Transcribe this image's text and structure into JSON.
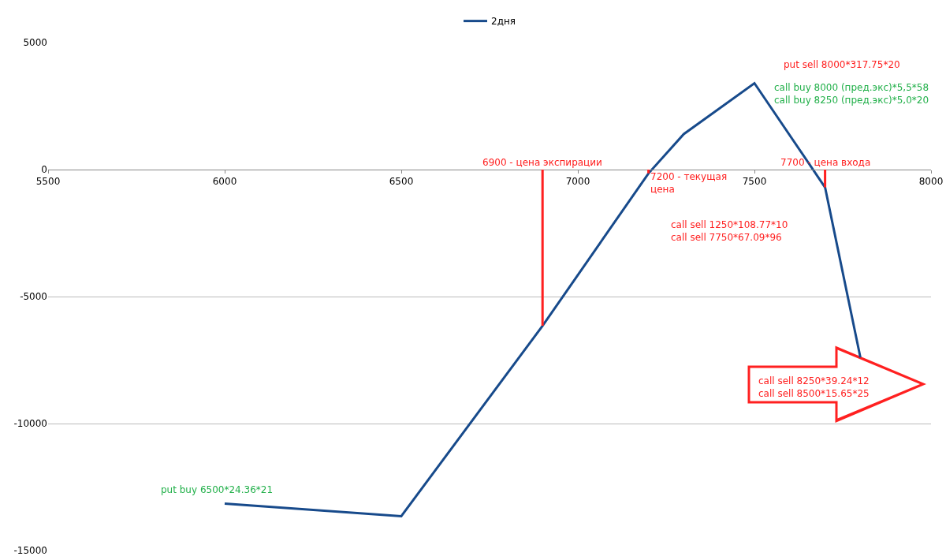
{
  "chart_data": {
    "type": "line",
    "legend": "top",
    "grid": "y",
    "marker": "none",
    "line_style": "solid",
    "x": [
      6000,
      6500,
      6900,
      7200,
      7300,
      7500,
      7700,
      7800
    ],
    "series": [
      {
        "name": "2дня",
        "color": "#174a8b",
        "values": [
          -13150,
          -13650,
          -6150,
          -150,
          1400,
          3400,
          -700,
          -7400
        ]
      }
    ],
    "xlim": [
      5500,
      8000
    ],
    "xticks": [
      5500,
      6000,
      6500,
      7000,
      7500,
      8000
    ],
    "ylim": [
      -15000,
      5000
    ],
    "yticks": [
      -15000,
      -10000,
      -5000,
      0,
      5000
    ],
    "annotations": [
      "put sell 8000*317.75*20",
      "call buy 8000 (пред.экс)*5,5*58\ncall buy 8250 (пред.экс)*5,0*20",
      {
        "text": "6900 - цена экспирации",
        "x": 6900,
        "y": -6150
      },
      {
        "text": "7200 - текущая\nцена",
        "x": 7200,
        "y": -150
      },
      {
        "text": "7700 - цена входа",
        "x": 7700,
        "y": -700
      },
      "call sell 1250*108.77*10\ncall sell 7750*67.09*96",
      "call sell 8250*39.24*12\ncall sell 8500*15.65*25",
      "put buy 6500*24.36*21"
    ]
  }
}
